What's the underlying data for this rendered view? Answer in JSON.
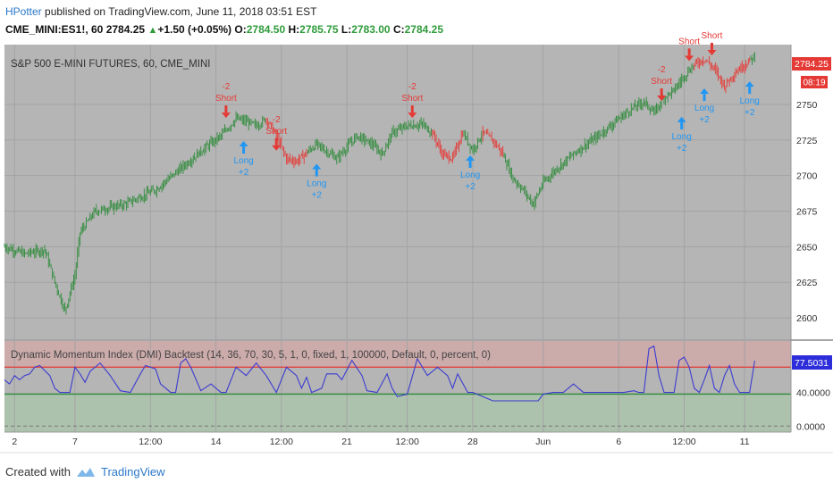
{
  "header": {
    "author": "HPotter",
    "published_text": " published on TradingView.com, June 11, 2018 03:51 EST",
    "symbol": "CME_MINI:ES1!, 60",
    "last": "2784.25",
    "change": "+1.50 (+0.05%)",
    "open_label": "O:",
    "open": "2784.50",
    "high_label": "H:",
    "high": "2785.75",
    "low_label": "L:",
    "low": "2783.00",
    "close_label": "C:",
    "close": "2784.25"
  },
  "main_pane": {
    "title": "S&P 500 E-MINI FUTURES, 60, CME_MINI",
    "last_price_label": "2784.25",
    "countdown_label": "08:19"
  },
  "indicator_pane": {
    "title": "Dynamic Momentum Index (DMI) Backtest (14, 36, 70, 30, 5, 1, 0, fixed, 1, 100000, Default, 0, percent, 0)",
    "last_value_label": "77.5031",
    "y_labels": [
      "40.0000",
      "0.0000"
    ]
  },
  "x_labels": [
    "2",
    "7",
    "12:00",
    "14",
    "12:00",
    "21",
    "12:00",
    "28",
    "Jun",
    "6",
    "12:00",
    "11"
  ],
  "footer": {
    "created_with": "Created with",
    "brand": "TradingView"
  },
  "colors": {
    "up": "#2e8b3a",
    "down": "#e53935",
    "indicator": "#3b3bd1",
    "upper_line": "#e53935",
    "lower_line": "#2e8b3a",
    "long_marker": "#2196f3",
    "short_marker": "#e53935"
  },
  "chart_data": {
    "type": "candlestick",
    "title": "S&P 500 E-MINI FUTURES, 60, CME_MINI",
    "y_axis_ticks": [
      2600,
      2625,
      2650,
      2675,
      2700,
      2725,
      2750
    ],
    "ylim": [
      2585,
      2792
    ],
    "x_tick_labels": [
      "2",
      "7",
      "12:00",
      "14",
      "12:00",
      "21",
      "12:00",
      "28",
      "Jun",
      "6",
      "12:00",
      "11"
    ],
    "price_path": [
      [
        0,
        2650
      ],
      [
        4,
        2645
      ],
      [
        8,
        2648
      ],
      [
        10,
        2625
      ],
      [
        12,
        2605
      ],
      [
        14,
        2630
      ],
      [
        15,
        2660
      ],
      [
        18,
        2675
      ],
      [
        24,
        2680
      ],
      [
        30,
        2690
      ],
      [
        35,
        2705
      ],
      [
        40,
        2720
      ],
      [
        43,
        2728
      ],
      [
        46,
        2740
      ],
      [
        48,
        2738
      ],
      [
        50,
        2735
      ],
      [
        52,
        2740
      ],
      [
        54,
        2728
      ],
      [
        56,
        2712
      ],
      [
        58,
        2710
      ],
      [
        62,
        2722
      ],
      [
        66,
        2712
      ],
      [
        70,
        2728
      ],
      [
        73,
        2722
      ],
      [
        75,
        2715
      ],
      [
        77,
        2730
      ],
      [
        80,
        2735
      ],
      [
        83,
        2736
      ],
      [
        85,
        2730
      ],
      [
        87,
        2715
      ],
      [
        89,
        2712
      ],
      [
        91,
        2730
      ],
      [
        93,
        2718
      ],
      [
        95,
        2730
      ],
      [
        97,
        2725
      ],
      [
        99,
        2715
      ],
      [
        101,
        2698
      ],
      [
        103,
        2690
      ],
      [
        105,
        2680
      ],
      [
        107,
        2695
      ],
      [
        110,
        2706
      ],
      [
        114,
        2718
      ],
      [
        118,
        2728
      ],
      [
        122,
        2740
      ],
      [
        125,
        2748
      ],
      [
        127,
        2752
      ],
      [
        129,
        2744
      ],
      [
        131,
        2755
      ],
      [
        133,
        2760
      ],
      [
        135,
        2770
      ],
      [
        137,
        2778
      ],
      [
        139,
        2782
      ],
      [
        141,
        2775
      ],
      [
        143,
        2763
      ],
      [
        145,
        2772
      ],
      [
        147,
        2778
      ],
      [
        149,
        2784
      ]
    ],
    "signals": [
      {
        "type": "short",
        "label_top": "-2",
        "label_bottom": "Short",
        "x": 44,
        "price": 2738
      },
      {
        "type": "long",
        "label_top": "Long",
        "label_bottom": "+2",
        "x": 47.5,
        "price": 2728
      },
      {
        "type": "short",
        "label_top": "-2",
        "label_bottom": "Short",
        "x": 54,
        "price": 2715
      },
      {
        "type": "long",
        "label_top": "Long",
        "label_bottom": "+2",
        "x": 62,
        "price": 2712
      },
      {
        "type": "short",
        "label_top": "-2",
        "label_bottom": "Short",
        "x": 81,
        "price": 2738
      },
      {
        "type": "long",
        "label_top": "Long",
        "label_bottom": "+2",
        "x": 92.5,
        "price": 2718
      },
      {
        "type": "short",
        "label_top": "-2",
        "label_bottom": "Short",
        "x": 130.5,
        "price": 2750
      },
      {
        "type": "long",
        "label_top": "Long",
        "label_bottom": "+2",
        "x": 134.5,
        "price": 2745
      },
      {
        "type": "short",
        "label_top": "",
        "label_bottom": "Short",
        "x": 136,
        "price": 2778
      },
      {
        "type": "long",
        "label_top": "Long",
        "label_bottom": "+2",
        "x": 139,
        "price": 2765
      },
      {
        "type": "short",
        "label_top": "",
        "label_bottom": "Short",
        "x": 140.5,
        "price": 2782
      },
      {
        "type": "long",
        "label_top": "Long",
        "label_bottom": "+2",
        "x": 148,
        "price": 2770
      }
    ],
    "indicator": {
      "name": "Dynamic Momentum Index (DMI) Backtest",
      "upper_level": 70,
      "lower_level": 30,
      "last_value": 77.5031,
      "ylim": [
        -5,
        100
      ],
      "series": [
        [
          0,
          55
        ],
        [
          1,
          50
        ],
        [
          2,
          60
        ],
        [
          3,
          55
        ],
        [
          4,
          60
        ],
        [
          5,
          62
        ],
        [
          6,
          70
        ],
        [
          7,
          72
        ],
        [
          9,
          60
        ],
        [
          10,
          45
        ],
        [
          11,
          40
        ],
        [
          13,
          40
        ],
        [
          14,
          70
        ],
        [
          15,
          62
        ],
        [
          16,
          52
        ],
        [
          17,
          65
        ],
        [
          19,
          75
        ],
        [
          21,
          60
        ],
        [
          23,
          42
        ],
        [
          25,
          40
        ],
        [
          27,
          62
        ],
        [
          28,
          72
        ],
        [
          30,
          68
        ],
        [
          31,
          50
        ],
        [
          33,
          40
        ],
        [
          34,
          40
        ],
        [
          35,
          75
        ],
        [
          36,
          80
        ],
        [
          37,
          70
        ],
        [
          39,
          42
        ],
        [
          41,
          50
        ],
        [
          43,
          40
        ],
        [
          44,
          40
        ],
        [
          46,
          70
        ],
        [
          48,
          60
        ],
        [
          50,
          75
        ],
        [
          52,
          60
        ],
        [
          54,
          40
        ],
        [
          56,
          70
        ],
        [
          58,
          60
        ],
        [
          59,
          45
        ],
        [
          60,
          58
        ],
        [
          61,
          40
        ],
        [
          63,
          45
        ],
        [
          64,
          62
        ],
        [
          66,
          62
        ],
        [
          67,
          55
        ],
        [
          69,
          78
        ],
        [
          71,
          60
        ],
        [
          72,
          42
        ],
        [
          74,
          40
        ],
        [
          76,
          62
        ],
        [
          77,
          45
        ],
        [
          78,
          35
        ],
        [
          80,
          38
        ],
        [
          82,
          80
        ],
        [
          84,
          60
        ],
        [
          86,
          70
        ],
        [
          88,
          60
        ],
        [
          89,
          45
        ],
        [
          90,
          62
        ],
        [
          92,
          40
        ],
        [
          93,
          40
        ],
        [
          95,
          35
        ],
        [
          97,
          30
        ],
        [
          99,
          30
        ],
        [
          101,
          30
        ],
        [
          104,
          30
        ],
        [
          106,
          30
        ],
        [
          107,
          38
        ],
        [
          109,
          40
        ],
        [
          111,
          40
        ],
        [
          113,
          50
        ],
        [
          115,
          40
        ],
        [
          117,
          40
        ],
        [
          119,
          40
        ],
        [
          121,
          40
        ],
        [
          123,
          40
        ],
        [
          125,
          42
        ],
        [
          126,
          40
        ],
        [
          127,
          40
        ],
        [
          128,
          92
        ],
        [
          129,
          95
        ],
        [
          130,
          60
        ],
        [
          131,
          40
        ],
        [
          133,
          40
        ],
        [
          134,
          78
        ],
        [
          135,
          82
        ],
        [
          136,
          70
        ],
        [
          137,
          45
        ],
        [
          138,
          40
        ],
        [
          139,
          55
        ],
        [
          140,
          72
        ],
        [
          141,
          45
        ],
        [
          142,
          40
        ],
        [
          143,
          60
        ],
        [
          144,
          72
        ],
        [
          145,
          50
        ],
        [
          146,
          40
        ],
        [
          147,
          40
        ],
        [
          148,
          40
        ],
        [
          149,
          77.5
        ]
      ]
    }
  }
}
